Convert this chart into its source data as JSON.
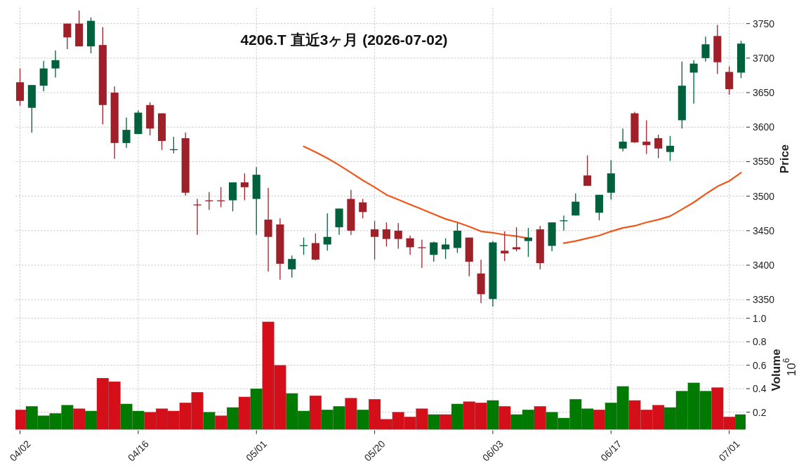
{
  "chart_data": [
    {
      "type": "candlestick",
      "title": "4206.T 直近3ヶ月 (2026-07-02)",
      "ylabel": "Price",
      "categories": [
        null,
        null,
        null,
        null,
        null,
        null,
        null,
        null,
        null,
        null,
        null,
        null,
        null,
        null,
        null,
        null,
        null,
        null,
        null,
        null,
        null,
        null,
        null,
        null,
        null,
        null,
        null,
        null,
        null,
        null,
        null,
        null,
        null,
        null,
        null,
        null,
        null,
        null,
        null,
        null,
        null,
        null,
        null,
        null,
        null,
        null,
        null,
        null,
        null,
        null,
        null,
        null,
        null,
        null,
        null,
        null,
        null,
        null,
        null,
        null,
        null,
        null
      ],
      "ohlc": [
        [
          3665,
          3685,
          3631,
          3638
        ],
        [
          3628,
          3661,
          3592,
          3661
        ],
        [
          3660,
          3696,
          3652,
          3685
        ],
        [
          3685,
          3711,
          3672,
          3697
        ],
        [
          3750,
          3750,
          3713,
          3730
        ],
        [
          3750,
          3769,
          3717,
          3717
        ],
        [
          3717,
          3759,
          3707,
          3754
        ],
        [
          3719,
          3745,
          3604,
          3632
        ],
        [
          3650,
          3659,
          3554,
          3577
        ],
        [
          3577,
          3614,
          3570,
          3596
        ],
        [
          3590,
          3624,
          3590,
          3621
        ],
        [
          3632,
          3636,
          3588,
          3598
        ],
        [
          3620,
          3620,
          3567,
          3580
        ],
        [
          3567,
          3586,
          3562,
          3568
        ],
        [
          3584,
          3592,
          3501,
          3505
        ],
        [
          3488,
          3496,
          3444,
          3487
        ],
        [
          3494,
          3506,
          3480,
          3493
        ],
        [
          3494,
          3513,
          3484,
          3493
        ],
        [
          3494,
          3520,
          3478,
          3520
        ],
        [
          3520,
          3533,
          3494,
          3513
        ],
        [
          3496,
          3542,
          3444,
          3531
        ],
        [
          3466,
          3512,
          3391,
          3441
        ],
        [
          3459,
          3468,
          3379,
          3402
        ],
        [
          3394,
          3414,
          3382,
          3409
        ],
        [
          3428,
          3440,
          3415,
          3429
        ],
        [
          3432,
          3446,
          3407,
          3408
        ],
        [
          3430,
          3475,
          3421,
          3441
        ],
        [
          3455,
          3482,
          3444,
          3482
        ],
        [
          3496,
          3509,
          3444,
          3450
        ],
        [
          3491,
          3496,
          3468,
          3477
        ],
        [
          3452,
          3464,
          3408,
          3441
        ],
        [
          3452,
          3462,
          3427,
          3438
        ],
        [
          3450,
          3461,
          3424,
          3438
        ],
        [
          3439,
          3443,
          3415,
          3426
        ],
        [
          3426,
          3437,
          3396,
          3425
        ],
        [
          3415,
          3434,
          3405,
          3433
        ],
        [
          3423,
          3439,
          3409,
          3430
        ],
        [
          3425,
          3461,
          3418,
          3450
        ],
        [
          3440,
          3440,
          3384,
          3405
        ],
        [
          3388,
          3408,
          3345,
          3358
        ],
        [
          3351,
          3435,
          3340,
          3433
        ],
        [
          3421,
          3449,
          3406,
          3417
        ],
        [
          3426,
          3455,
          3420,
          3423
        ],
        [
          3435,
          3454,
          3412,
          3440
        ],
        [
          3452,
          3457,
          3394,
          3403
        ],
        [
          3428,
          3462,
          3420,
          3462
        ],
        [
          3464,
          3472,
          3450,
          3465
        ],
        [
          3472,
          3504,
          3472,
          3492
        ],
        [
          3530,
          3559,
          3515,
          3515
        ],
        [
          3476,
          3502,
          3465,
          3502
        ],
        [
          3505,
          3552,
          3495,
          3533
        ],
        [
          3569,
          3598,
          3565,
          3579
        ],
        [
          3620,
          3622,
          3577,
          3578
        ],
        [
          3579,
          3610,
          3561,
          3574
        ],
        [
          3584,
          3589,
          3555,
          3569
        ],
        [
          3564,
          3587,
          3551,
          3573
        ],
        [
          3610,
          3695,
          3598,
          3660
        ],
        [
          3679,
          3697,
          3634,
          3692
        ],
        [
          3700,
          3731,
          3695,
          3720
        ],
        [
          3732,
          3748,
          3677,
          3694
        ],
        [
          3680,
          3688,
          3647,
          3655
        ],
        [
          3679,
          3725,
          3671,
          3721
        ]
      ],
      "colors": [
        "#a0202a",
        "#00613c",
        "#00613c",
        "#00613c",
        "#a0202a",
        "#a0202a",
        "#00613c",
        "#a0202a",
        "#a0202a",
        "#00613c",
        "#00613c",
        "#a0202a",
        "#a0202a",
        "#00613c",
        "#a0202a",
        "#a0202a",
        "#a0202a",
        "#a0202a",
        "#00613c",
        "#a0202a",
        "#00613c",
        "#a0202a",
        "#a0202a",
        "#00613c",
        "#00613c",
        "#a0202a",
        "#00613c",
        "#00613c",
        "#a0202a",
        "#a0202a",
        "#a0202a",
        "#a0202a",
        "#a0202a",
        "#a0202a",
        "#a0202a",
        "#00613c",
        "#00613c",
        "#00613c",
        "#a0202a",
        "#a0202a",
        "#00613c",
        "#a0202a",
        "#a0202a",
        "#00613c",
        "#a0202a",
        "#00613c",
        "#00613c",
        "#00613c",
        "#a0202a",
        "#00613c",
        "#00613c",
        "#00613c",
        "#a0202a",
        "#a0202a",
        "#a0202a",
        "#00613c",
        "#00613c",
        "#00613c",
        "#00613c",
        "#a0202a",
        "#a0202a",
        "#00613c"
      ],
      "series": [
        {
          "type": "line",
          "color": "#f0561a",
          "values": [
            null,
            null,
            null,
            null,
            null,
            null,
            null,
            null,
            null,
            null,
            null,
            null,
            null,
            null,
            null,
            null,
            null,
            null,
            null,
            null,
            null,
            null,
            null,
            null,
            3572,
            3564,
            3555,
            3545,
            3534,
            3523,
            3513,
            3502,
            3495,
            3488,
            3481,
            3474,
            3467,
            3462,
            3456,
            3449,
            3447,
            3444,
            3442,
            3439,
            null,
            null,
            3432,
            3435,
            3439,
            3443,
            3449,
            3454,
            3457,
            3462,
            3466,
            3471,
            3481,
            3491,
            3503,
            3514,
            3522,
            3534
          ]
        }
      ],
      "ylim": [
        3335,
        3773
      ],
      "yticks": [
        3350,
        3400,
        3450,
        3500,
        3550,
        3600,
        3650,
        3700,
        3750
      ],
      "grid": true,
      "tick_labels": "y"
    },
    {
      "type": "bar",
      "ylabel": "Volume",
      "annotations": [
        "10$^{6}$"
      ],
      "categories": [
        "04/02",
        null,
        null,
        null,
        null,
        null,
        null,
        null,
        null,
        null,
        "04/16",
        null,
        null,
        null,
        null,
        null,
        null,
        null,
        null,
        null,
        "05/01",
        null,
        null,
        null,
        null,
        null,
        null,
        null,
        null,
        null,
        "05/20",
        null,
        null,
        null,
        null,
        null,
        null,
        null,
        null,
        null,
        "06/03",
        null,
        null,
        null,
        null,
        null,
        null,
        null,
        null,
        null,
        "06/17",
        null,
        null,
        null,
        null,
        null,
        null,
        null,
        null,
        null,
        "07/01",
        null
      ],
      "values": [
        0.22,
        0.25,
        0.17,
        0.19,
        0.26,
        0.23,
        0.21,
        0.49,
        0.46,
        0.27,
        0.21,
        0.2,
        0.23,
        0.21,
        0.28,
        0.37,
        0.2,
        0.17,
        0.24,
        0.33,
        0.4,
        0.97,
        0.6,
        0.36,
        0.21,
        0.34,
        0.22,
        0.25,
        0.32,
        0.22,
        0.31,
        0.14,
        0.2,
        0.16,
        0.23,
        0.18,
        0.18,
        0.27,
        0.29,
        0.28,
        0.3,
        0.25,
        0.18,
        0.22,
        0.25,
        0.2,
        0.15,
        0.31,
        0.23,
        0.22,
        0.28,
        0.42,
        0.3,
        0.22,
        0.26,
        0.24,
        0.38,
        0.45,
        0.38,
        0.41,
        0.16,
        0.18
      ],
      "colors": [
        "#d50f1a",
        "#007a00",
        "#007a00",
        "#007a00",
        "#007a00",
        "#d50f1a",
        "#007a00",
        "#d50f1a",
        "#d50f1a",
        "#007a00",
        "#007a00",
        "#d50f1a",
        "#d50f1a",
        "#d50f1a",
        "#d50f1a",
        "#d50f1a",
        "#007a00",
        "#d50f1a",
        "#007a00",
        "#d50f1a",
        "#007a00",
        "#d50f1a",
        "#d50f1a",
        "#007a00",
        "#007a00",
        "#d50f1a",
        "#007a00",
        "#007a00",
        "#d50f1a",
        "#007a00",
        "#d50f1a",
        "#d50f1a",
        "#d50f1a",
        "#d50f1a",
        "#d50f1a",
        "#007a00",
        "#d50f1a",
        "#007a00",
        "#d50f1a",
        "#d50f1a",
        "#007a00",
        "#d50f1a",
        "#007a00",
        "#007a00",
        "#d50f1a",
        "#007a00",
        "#007a00",
        "#007a00",
        "#007a00",
        "#d50f1a",
        "#007a00",
        "#007a00",
        "#d50f1a",
        "#d50f1a",
        "#d50f1a",
        "#007a00",
        "#007a00",
        "#007a00",
        "#007a00",
        "#d50f1a",
        "#d50f1a",
        "#007a00"
      ],
      "ylim": [
        0.05,
        1.07
      ],
      "yticks": [
        0.2,
        0.4,
        0.6,
        0.8,
        {
          "value": 1,
          "label": "1.0"
        }
      ],
      "grid": true
    }
  ]
}
